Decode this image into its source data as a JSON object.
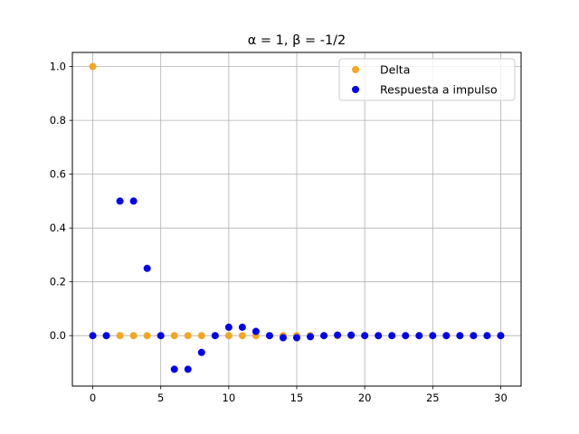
{
  "chart_data": {
    "type": "scatter",
    "title": "α = 1, β = -1/2",
    "xlabel": "",
    "ylabel": "",
    "xlim": [
      -1.5,
      31.5
    ],
    "ylim": [
      -0.1875,
      1.0525
    ],
    "xticks": [
      0,
      5,
      10,
      15,
      20,
      25,
      30
    ],
    "yticks": [
      0.0,
      0.2,
      0.4,
      0.6,
      0.8,
      1.0
    ],
    "xtick_labels": [
      "0",
      "5",
      "10",
      "15",
      "20",
      "25",
      "30"
    ],
    "ytick_labels": [
      "0.0",
      "0.2",
      "0.4",
      "0.6",
      "0.8",
      "1.0"
    ],
    "grid": true,
    "legend_position": "top-right",
    "series": [
      {
        "name": "Delta",
        "color": "#f5a623",
        "x": [
          0,
          1,
          2,
          3,
          4,
          5,
          6,
          7,
          8,
          9,
          10,
          11,
          12,
          13,
          14,
          15,
          16,
          17,
          18,
          19,
          20,
          21,
          22,
          23,
          24,
          25,
          26,
          27,
          28,
          29,
          30
        ],
        "y": [
          1,
          0,
          0,
          0,
          0,
          0,
          0,
          0,
          0,
          0,
          0,
          0,
          0,
          0,
          0,
          0,
          0,
          0,
          0,
          0,
          0,
          0,
          0,
          0,
          0,
          0,
          0,
          0,
          0,
          0,
          0
        ]
      },
      {
        "name": "Respuesta a impulso",
        "color": "#0000ee",
        "x": [
          0,
          1,
          2,
          3,
          4,
          5,
          6,
          7,
          8,
          9,
          10,
          11,
          12,
          13,
          14,
          15,
          16,
          17,
          18,
          19,
          20,
          21,
          22,
          23,
          24,
          25,
          26,
          27,
          28,
          29,
          30
        ],
        "y": [
          0,
          0,
          0.5,
          0.5,
          0.25,
          0,
          -0.125,
          -0.125,
          -0.0625,
          0,
          0.03125,
          0.03125,
          0.015625,
          0,
          -0.0078125,
          -0.0078125,
          -0.00390625,
          0,
          0.001953125,
          0.001953125,
          0,
          0,
          0,
          0,
          0,
          0,
          0,
          0,
          0,
          0,
          0
        ]
      }
    ]
  }
}
